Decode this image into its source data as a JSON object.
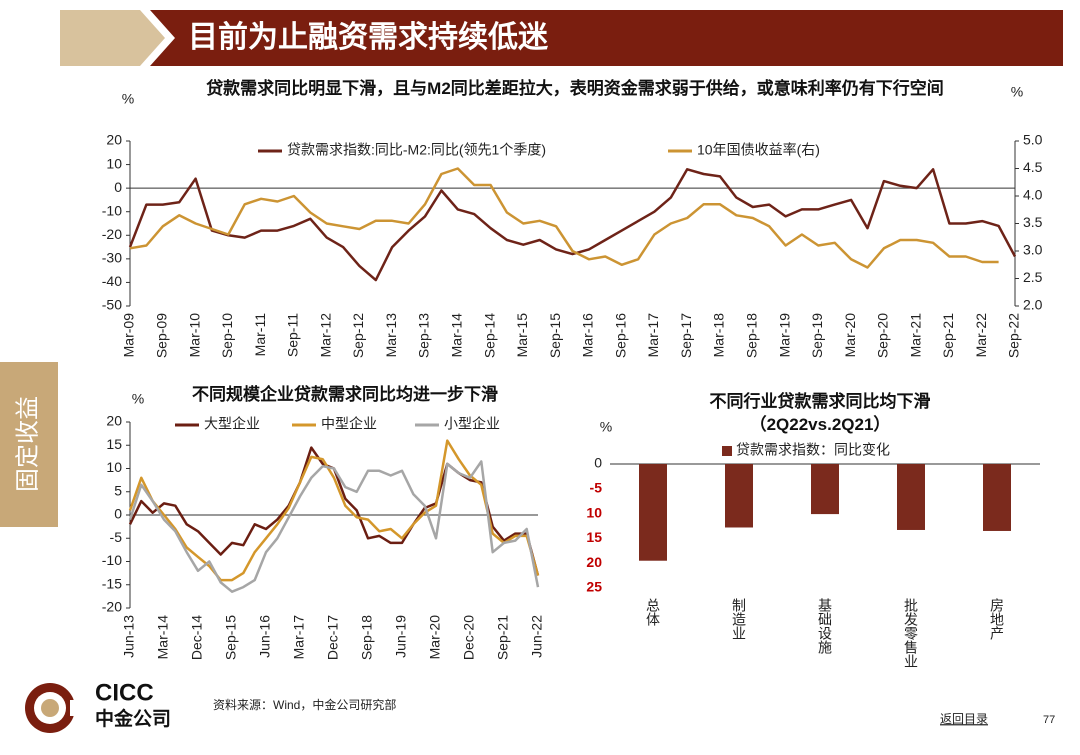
{
  "header": {
    "title": "目前为止融资需求持续低迷"
  },
  "sidebar": {
    "label": "固定收益"
  },
  "footer": {
    "brand": "CICC",
    "brand_cn": "中金公司",
    "source": "资料来源：Wind，中金公司研究部",
    "nav": "返回目录",
    "page": 77
  },
  "chart_data": [
    {
      "type": "line",
      "title": "贷款需求同比明显下滑，且与M2同比差距拉大，表明资金需求弱于供给，或意味利率仍有下行空间",
      "y_unit": "%",
      "y2_unit": "%",
      "categories": [
        "Mar-09",
        null,
        "Sep-09",
        null,
        "Mar-10",
        null,
        "Sep-10",
        null,
        "Mar-11",
        null,
        "Sep-11",
        null,
        "Mar-12",
        null,
        "Sep-12",
        null,
        "Mar-13",
        null,
        "Sep-13",
        null,
        "Mar-14",
        null,
        "Sep-14",
        null,
        "Mar-15",
        null,
        "Sep-15",
        null,
        "Mar-16",
        null,
        "Sep-16",
        null,
        "Mar-17",
        null,
        "Sep-17",
        null,
        "Mar-18",
        null,
        "Sep-18",
        null,
        "Mar-19",
        null,
        "Sep-19",
        null,
        "Mar-20",
        null,
        "Sep-20",
        null,
        "Mar-21",
        null,
        "Sep-21",
        null,
        "Mar-22",
        null,
        "Sep-22"
      ],
      "series": [
        {
          "name": "贷款需求指数:同比-M2:同比(领先1个季度)",
          "color": "#6e2318",
          "values": [
            -25,
            -7,
            -7,
            -6,
            4,
            -18,
            -20,
            -21,
            -18,
            -18,
            -16,
            -13,
            -21,
            -25,
            -33,
            -39,
            -25,
            -18,
            -12,
            -1,
            -9,
            -11,
            -17,
            -22,
            -24,
            -22,
            -26,
            -28,
            -26,
            -22,
            -18,
            -14,
            -10,
            -4,
            8,
            6,
            5,
            -4,
            -8,
            -7,
            -12,
            -9,
            -9,
            -7,
            -5,
            -17,
            3,
            1,
            0,
            8,
            -15,
            -15,
            -14,
            -16,
            -29
          ]
        },
        {
          "name": "10年国债收益率(右)",
          "color": "#cc9433",
          "axis": "y2",
          "values": [
            3.05,
            3.1,
            3.45,
            3.65,
            3.5,
            3.4,
            3.3,
            3.85,
            3.95,
            3.9,
            4.0,
            3.7,
            3.5,
            3.45,
            3.4,
            3.55,
            3.55,
            3.5,
            3.85,
            4.4,
            4.5,
            4.2,
            4.2,
            3.7,
            3.5,
            3.55,
            3.45,
            3.0,
            2.85,
            2.9,
            2.75,
            2.85,
            3.3,
            3.5,
            3.6,
            3.85,
            3.85,
            3.65,
            3.6,
            3.45,
            3.1,
            3.3,
            3.1,
            3.15,
            2.85,
            2.7,
            3.05,
            3.2,
            3.2,
            3.15,
            2.9,
            2.9,
            2.8,
            2.8,
            null
          ]
        }
      ],
      "ylim": [
        -50,
        20
      ],
      "yticks": [
        20,
        10,
        0,
        -10,
        -20,
        -30,
        -40,
        -50
      ],
      "y2lim": [
        2,
        5
      ],
      "y2ticks": [
        {
          "value": 5,
          "label": "5.0"
        },
        4.5,
        {
          "value": 4,
          "label": "4.0"
        },
        3.5,
        {
          "value": 3,
          "label": "3.0"
        },
        2.5,
        {
          "value": 2,
          "label": "2.0"
        }
      ],
      "legend": "top"
    },
    {
      "type": "line",
      "title": "不同规模企业贷款需求同比均进一步下滑",
      "y_unit": "%",
      "categories": [
        "Jun-13",
        null,
        null,
        "Mar-14",
        null,
        null,
        "Dec-14",
        null,
        null,
        "Sep-15",
        null,
        null,
        "Jun-16",
        null,
        null,
        "Mar-17",
        null,
        null,
        "Dec-17",
        null,
        null,
        "Sep-18",
        null,
        null,
        "Jun-19",
        null,
        null,
        "Mar-20",
        null,
        null,
        "Dec-20",
        null,
        null,
        "Sep-21",
        null,
        null,
        "Jun-22"
      ],
      "series": [
        {
          "name": "大型企业",
          "color": "#6b1e12",
          "values": [
            -2,
            3,
            0.5,
            2.5,
            2,
            -2,
            -3.5,
            -6,
            -8.5,
            -6,
            -6.5,
            -2,
            -3,
            -1,
            2,
            7,
            14.5,
            11,
            10,
            3.5,
            1,
            -5,
            -4.5,
            -6,
            -6,
            -2,
            1.5,
            2.5,
            11,
            9,
            7.5,
            7,
            -2.5,
            -5.5,
            -4,
            -4,
            -13
          ]
        },
        {
          "name": "中型企业",
          "color": "#d4972b",
          "values": [
            1,
            8,
            3,
            0,
            -3,
            -7,
            -9,
            -11,
            -14,
            -14,
            -12.5,
            -8,
            -5,
            -2,
            1.5,
            7,
            12.5,
            12,
            8,
            2,
            -0.5,
            -1,
            -3.5,
            -3,
            -5,
            -2,
            0.5,
            2,
            16,
            12,
            8.5,
            6.5,
            -4,
            -6,
            -4.5,
            -4.5,
            -13
          ]
        },
        {
          "name": "小型企业",
          "color": "#a6a6a6",
          "values": [
            -1,
            6.5,
            3,
            -1,
            -3.5,
            -8,
            -12,
            -10,
            -14.5,
            -16.5,
            -15.5,
            -14,
            -8,
            -5,
            -0.5,
            4,
            8,
            10.5,
            10,
            6,
            5,
            9.5,
            9.5,
            8.5,
            9.5,
            4.5,
            2,
            -5,
            11,
            9,
            8,
            11.5,
            -8,
            -6,
            -5.5,
            -3,
            -15.5
          ]
        }
      ],
      "ylim": [
        -20,
        20
      ],
      "yticks": [
        20,
        15,
        10,
        5,
        0,
        -5,
        -10,
        -15,
        -20
      ],
      "legend": "top"
    },
    {
      "type": "bar",
      "title": "不同行业贷款需求同比均下滑",
      "subtitle": "（2Q22vs.2Q21）",
      "y_unit": "%",
      "categories": [
        "总体",
        "制造业",
        "基础设施",
        "批发零售业",
        "房地产"
      ],
      "series": [
        {
          "name": "贷款需求指数：同比变化",
          "color": "#7b2a1d",
          "values": [
            -19.5,
            -12.8,
            -10.1,
            -13.3,
            -13.5
          ]
        }
      ],
      "ylim": [
        -25,
        0
      ],
      "yticks": [
        0,
        -5,
        {
          "value": -10,
          "label": "10"
        },
        {
          "value": -15,
          "label": "15"
        },
        {
          "value": -20,
          "label": "20"
        },
        {
          "value": -25,
          "label": "25"
        }
      ],
      "legend": "top"
    }
  ]
}
